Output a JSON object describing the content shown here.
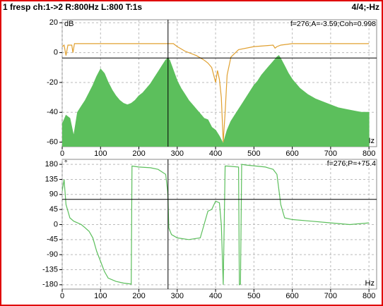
{
  "header": {
    "left": "1 fresp ch:1->2 R:800Hz L:800 T:1s",
    "right": "4/4;-Hz"
  },
  "chart_data": [
    {
      "type": "line",
      "y_unit": "dB",
      "x_unit": "Hz",
      "annotation": "f=276;A=-3.59;Coh=0.998",
      "xlim": [
        0,
        820
      ],
      "xticks": [
        0,
        100,
        200,
        300,
        400,
        500,
        600,
        700,
        800
      ],
      "ylim": [
        -63,
        22
      ],
      "yticks": [
        20,
        0,
        -20,
        -40,
        -60
      ],
      "grid": true,
      "cursor_x": 276,
      "cursor_y": -3.59,
      "series": [
        {
          "color": "#5cbf5c",
          "fill": true,
          "x": [
            0,
            10,
            20,
            30,
            40,
            50,
            60,
            70,
            80,
            90,
            100,
            110,
            120,
            130,
            140,
            150,
            160,
            170,
            180,
            190,
            200,
            210,
            220,
            230,
            240,
            250,
            260,
            270,
            276,
            280,
            290,
            300,
            310,
            320,
            330,
            340,
            350,
            360,
            370,
            380,
            390,
            400,
            410,
            420,
            430,
            440,
            450,
            460,
            470,
            480,
            490,
            500,
            510,
            520,
            530,
            540,
            550,
            560,
            565,
            570,
            580,
            590,
            600,
            620,
            640,
            660,
            680,
            700,
            720,
            740,
            760,
            780,
            800
          ],
          "values": [
            -48,
            -42,
            -44,
            -56,
            -40,
            -36,
            -32,
            -27,
            -22,
            -16,
            -11,
            -14,
            -20,
            -25,
            -29,
            -32,
            -34,
            -35,
            -34,
            -32,
            -29,
            -27,
            -24,
            -21,
            -17,
            -13,
            -9,
            -5,
            -3.6,
            -5,
            -12,
            -19,
            -24,
            -28,
            -32,
            -35,
            -38,
            -41,
            -44,
            -45,
            -50,
            -52,
            -56,
            -61,
            -52,
            -46,
            -42,
            -38,
            -34,
            -30,
            -26,
            -22,
            -19,
            -15,
            -12,
            -9,
            -6,
            -3,
            -2,
            -4,
            -9,
            -14,
            -18,
            -24,
            -28,
            -31,
            -33,
            -35,
            -37,
            -38,
            -39,
            -40,
            -40
          ]
        },
        {
          "color": "#e0a030",
          "fill": false,
          "x": [
            0,
            5,
            10,
            15,
            25,
            28,
            32,
            40,
            100,
            200,
            290,
            300,
            320,
            350,
            370,
            380,
            390,
            395,
            400,
            405,
            410,
            415,
            420,
            425,
            430,
            440,
            460,
            500,
            550,
            555,
            560,
            570,
            600,
            700,
            800
          ],
          "values": [
            4,
            5,
            -2,
            5,
            5,
            0,
            6,
            6,
            6,
            6,
            6,
            4,
            1,
            -2,
            -5,
            -7,
            -10,
            -15,
            -20,
            -12,
            -18,
            -30,
            -60,
            -40,
            -15,
            -3,
            2,
            4,
            5,
            3,
            4,
            5,
            6,
            6,
            6
          ]
        }
      ]
    },
    {
      "type": "line",
      "y_unit": "°",
      "x_unit": "Hz",
      "annotation": "f=276;P=+75.4",
      "xlim": [
        0,
        820
      ],
      "xticks": [
        0,
        100,
        200,
        300,
        400,
        500,
        600,
        700,
        800
      ],
      "ylim": [
        -193,
        195
      ],
      "yticks": [
        180,
        135,
        90,
        45,
        0,
        -45,
        -90,
        -135,
        -180
      ],
      "grid": true,
      "cursor_x": 276,
      "cursor_y": 75.4,
      "series": [
        {
          "color": "#5cbf5c",
          "fill": false,
          "x": [
            0,
            5,
            10,
            20,
            30,
            40,
            50,
            60,
            70,
            80,
            90,
            100,
            110,
            120,
            140,
            160,
            180,
            182,
            200,
            230,
            250,
            270,
            275,
            276,
            278,
            285,
            300,
            330,
            360,
            370,
            380,
            390,
            400,
            410,
            415,
            420,
            425,
            430,
            460,
            462,
            465,
            468,
            480,
            530,
            550,
            560,
            570,
            580,
            600,
            650,
            700,
            750,
            800
          ],
          "values": [
            100,
            135,
            60,
            20,
            10,
            5,
            0,
            -10,
            -20,
            -40,
            -80,
            -110,
            -140,
            -160,
            -170,
            -175,
            -178,
            175,
            172,
            170,
            165,
            150,
            100,
            75,
            -10,
            -30,
            -40,
            -45,
            -40,
            0,
            40,
            45,
            70,
            65,
            0,
            -180,
            175,
            175,
            172,
            -180,
            -178,
            180,
            178,
            172,
            165,
            150,
            60,
            20,
            15,
            10,
            5,
            0,
            5
          ]
        }
      ]
    }
  ]
}
